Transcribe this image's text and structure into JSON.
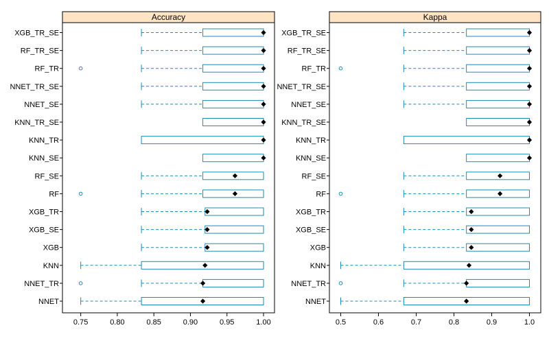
{
  "chart_data": {
    "type": "boxplot",
    "models": [
      "XGB_TR_SE",
      "RF_TR_SE",
      "RF_TR",
      "NNET_TR_SE",
      "NNET_SE",
      "KNN_TR_SE",
      "KNN_TR",
      "KNN_SE",
      "RF_SE",
      "RF",
      "XGB_TR",
      "XGB_SE",
      "XGB",
      "KNN",
      "NNET_TR",
      "NNET"
    ],
    "colors": {
      "box": "#1a8bb8",
      "strip": "#ffe4c4",
      "mean": "#000000",
      "frame": "#000000"
    },
    "panels": [
      {
        "title": "Accuracy",
        "xlim": [
          0.725,
          1.015
        ],
        "ticks": [
          0.75,
          0.8,
          0.85,
          0.9,
          0.95,
          1.0
        ],
        "tick_labels": [
          "0.75",
          "0.80",
          "0.85",
          "0.90",
          "0.95",
          "1.00"
        ],
        "boxes": [
          {
            "model": "XGB_TR_SE",
            "wlo": 0.833,
            "q1": 0.917,
            "med": 1.0,
            "q3": 1.0,
            "whi": 1.0,
            "outliers": []
          },
          {
            "model": "RF_TR_SE",
            "wlo": 0.833,
            "q1": 0.917,
            "med": 1.0,
            "q3": 1.0,
            "whi": 1.0,
            "outliers": []
          },
          {
            "model": "RF_TR",
            "wlo": 0.833,
            "q1": 0.917,
            "med": 1.0,
            "q3": 1.0,
            "whi": 1.0,
            "outliers": [
              0.75
            ]
          },
          {
            "model": "NNET_TR_SE",
            "wlo": 0.833,
            "q1": 0.917,
            "med": 1.0,
            "q3": 1.0,
            "whi": 1.0,
            "outliers": []
          },
          {
            "model": "NNET_SE",
            "wlo": 0.833,
            "q1": 0.917,
            "med": 1.0,
            "q3": 1.0,
            "whi": 1.0,
            "outliers": []
          },
          {
            "model": "KNN_TR_SE",
            "wlo": 0.917,
            "q1": 0.917,
            "med": 1.0,
            "q3": 1.0,
            "whi": 1.0,
            "outliers": []
          },
          {
            "model": "KNN_TR",
            "wlo": 0.833,
            "q1": 0.833,
            "med": 1.0,
            "q3": 1.0,
            "whi": 1.0,
            "outliers": []
          },
          {
            "model": "KNN_SE",
            "wlo": 0.917,
            "q1": 0.917,
            "med": 1.0,
            "q3": 1.0,
            "whi": 1.0,
            "outliers": []
          },
          {
            "model": "RF_SE",
            "wlo": 0.833,
            "q1": 0.917,
            "med": 0.961,
            "q3": 1.0,
            "whi": 1.0,
            "outliers": []
          },
          {
            "model": "RF",
            "wlo": 0.833,
            "q1": 0.917,
            "med": 0.961,
            "q3": 1.0,
            "whi": 1.0,
            "outliers": [
              0.75
            ]
          },
          {
            "model": "XGB_TR",
            "wlo": 0.833,
            "q1": 0.92,
            "med": 0.923,
            "q3": 1.0,
            "whi": 1.0,
            "outliers": []
          },
          {
            "model": "XGB_SE",
            "wlo": 0.833,
            "q1": 0.92,
            "med": 0.923,
            "q3": 1.0,
            "whi": 1.0,
            "outliers": []
          },
          {
            "model": "XGB",
            "wlo": 0.833,
            "q1": 0.92,
            "med": 0.923,
            "q3": 1.0,
            "whi": 1.0,
            "outliers": []
          },
          {
            "model": "KNN",
            "wlo": 0.75,
            "q1": 0.833,
            "med": 0.92,
            "q3": 1.0,
            "whi": 1.0,
            "outliers": []
          },
          {
            "model": "NNET_TR",
            "wlo": 0.833,
            "q1": 0.917,
            "med": 0.917,
            "q3": 1.0,
            "whi": 1.0,
            "outliers": [
              0.75
            ]
          },
          {
            "model": "NNET",
            "wlo": 0.75,
            "q1": 0.833,
            "med": 0.917,
            "q3": 1.0,
            "whi": 1.0,
            "outliers": []
          }
        ]
      },
      {
        "title": "Kappa",
        "xlim": [
          0.47,
          1.03
        ],
        "ticks": [
          0.5,
          0.6,
          0.7,
          0.8,
          0.9,
          1.0
        ],
        "tick_labels": [
          "0.5",
          "0.6",
          "0.7",
          "0.8",
          "0.9",
          "1.0"
        ],
        "boxes": [
          {
            "model": "XGB_TR_SE",
            "wlo": 0.667,
            "q1": 0.833,
            "med": 1.0,
            "q3": 1.0,
            "whi": 1.0,
            "outliers": []
          },
          {
            "model": "RF_TR_SE",
            "wlo": 0.667,
            "q1": 0.833,
            "med": 1.0,
            "q3": 1.0,
            "whi": 1.0,
            "outliers": []
          },
          {
            "model": "RF_TR",
            "wlo": 0.667,
            "q1": 0.833,
            "med": 1.0,
            "q3": 1.0,
            "whi": 1.0,
            "outliers": [
              0.5
            ]
          },
          {
            "model": "NNET_TR_SE",
            "wlo": 0.667,
            "q1": 0.833,
            "med": 1.0,
            "q3": 1.0,
            "whi": 1.0,
            "outliers": []
          },
          {
            "model": "NNET_SE",
            "wlo": 0.667,
            "q1": 0.833,
            "med": 1.0,
            "q3": 1.0,
            "whi": 1.0,
            "outliers": []
          },
          {
            "model": "KNN_TR_SE",
            "wlo": 0.833,
            "q1": 0.833,
            "med": 1.0,
            "q3": 1.0,
            "whi": 1.0,
            "outliers": []
          },
          {
            "model": "KNN_TR",
            "wlo": 0.667,
            "q1": 0.667,
            "med": 1.0,
            "q3": 1.0,
            "whi": 1.0,
            "outliers": []
          },
          {
            "model": "KNN_SE",
            "wlo": 0.833,
            "q1": 0.833,
            "med": 1.0,
            "q3": 1.0,
            "whi": 1.0,
            "outliers": []
          },
          {
            "model": "RF_SE",
            "wlo": 0.667,
            "q1": 0.833,
            "med": 0.922,
            "q3": 1.0,
            "whi": 1.0,
            "outliers": []
          },
          {
            "model": "RF",
            "wlo": 0.667,
            "q1": 0.833,
            "med": 0.922,
            "q3": 1.0,
            "whi": 1.0,
            "outliers": [
              0.5
            ]
          },
          {
            "model": "XGB_TR",
            "wlo": 0.667,
            "q1": 0.833,
            "med": 0.846,
            "q3": 1.0,
            "whi": 1.0,
            "outliers": []
          },
          {
            "model": "XGB_SE",
            "wlo": 0.667,
            "q1": 0.833,
            "med": 0.846,
            "q3": 1.0,
            "whi": 1.0,
            "outliers": []
          },
          {
            "model": "XGB",
            "wlo": 0.667,
            "q1": 0.833,
            "med": 0.846,
            "q3": 1.0,
            "whi": 1.0,
            "outliers": []
          },
          {
            "model": "KNN",
            "wlo": 0.5,
            "q1": 0.667,
            "med": 0.84,
            "q3": 1.0,
            "whi": 1.0,
            "outliers": []
          },
          {
            "model": "NNET_TR",
            "wlo": 0.667,
            "q1": 0.833,
            "med": 0.833,
            "q3": 1.0,
            "whi": 1.0,
            "outliers": [
              0.5
            ]
          },
          {
            "model": "NNET",
            "wlo": 0.5,
            "q1": 0.667,
            "med": 0.833,
            "q3": 1.0,
            "whi": 1.0,
            "outliers": []
          }
        ]
      }
    ]
  }
}
